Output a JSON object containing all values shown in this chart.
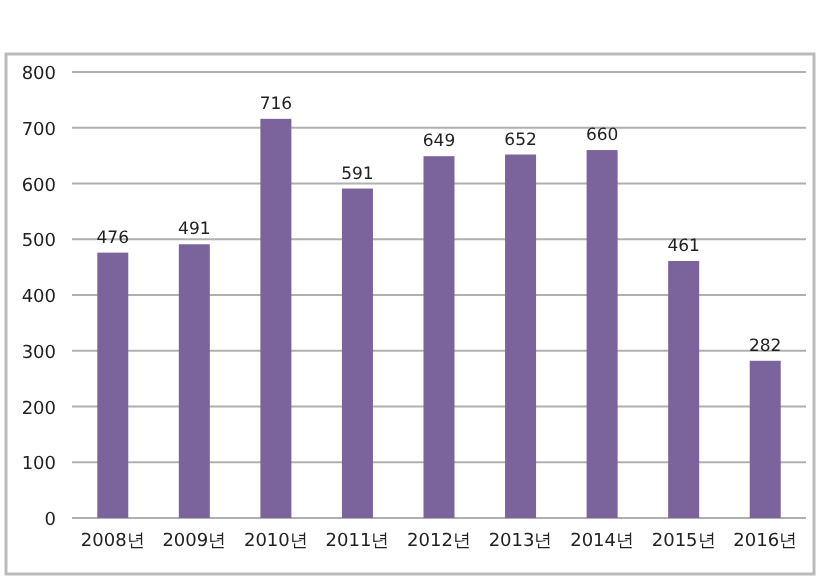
{
  "chart_data": {
    "type": "bar",
    "categories": [
      "2008년",
      "2009년",
      "2010년",
      "2011년",
      "2012년",
      "2013년",
      "2014년",
      "2015년",
      "2016년"
    ],
    "values": [
      476,
      491,
      716,
      591,
      649,
      652,
      660,
      461,
      282
    ],
    "color": "#7b649c",
    "ylim": [
      0,
      800
    ],
    "yticks": [
      0,
      100,
      200,
      300,
      400,
      500,
      600,
      700,
      800
    ],
    "grid": "y",
    "data_labels": true
  }
}
